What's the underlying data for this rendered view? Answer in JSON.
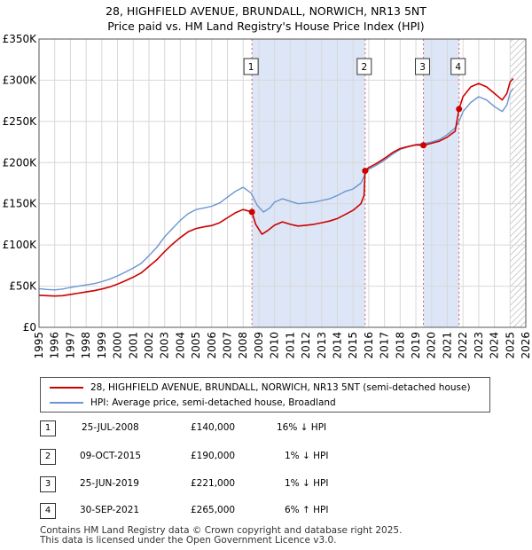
{
  "title": {
    "line1": "28, HIGHFIELD AVENUE, BRUNDALL, NORWICH, NR13 5NT",
    "line2": "Price paid vs. HM Land Registry's House Price Index (HPI)"
  },
  "colors": {
    "price_paid": "#cc0000",
    "hpi": "#6a96d1",
    "shade": "#dde6f7",
    "marker_line": "#e06060",
    "grid": "#d8d8d8"
  },
  "legend": {
    "price_label": "28, HIGHFIELD AVENUE, BRUNDALL, NORWICH, NR13 5NT (semi-detached house)",
    "hpi_label": "HPI: Average price, semi-detached house, Broadland"
  },
  "transactions": [
    {
      "num": "1",
      "date": "25-JUL-2008",
      "price": "£140,000",
      "hpi_diff": "16% ↓ HPI"
    },
    {
      "num": "2",
      "date": "09-OCT-2015",
      "price": "£190,000",
      "hpi_diff": "1% ↓ HPI"
    },
    {
      "num": "3",
      "date": "25-JUN-2019",
      "price": "£221,000",
      "hpi_diff": "1% ↓ HPI"
    },
    {
      "num": "4",
      "date": "30-SEP-2021",
      "price": "£265,000",
      "hpi_diff": "6% ↑ HPI"
    }
  ],
  "footer": {
    "line1": "Contains HM Land Registry data © Crown copyright and database right 2025.",
    "line2": "This data is licensed under the Open Government Licence v3.0."
  },
  "chart_data": {
    "type": "line",
    "title": "28, HIGHFIELD AVENUE, BRUNDALL, NORWICH, NR13 5NT",
    "xlim": [
      1995,
      2026
    ],
    "ylim": [
      0,
      350000
    ],
    "x_ticks": [
      "1995",
      "1996",
      "1997",
      "1998",
      "1999",
      "2000",
      "2001",
      "2002",
      "2003",
      "2004",
      "2005",
      "2006",
      "2007",
      "2008",
      "2009",
      "2010",
      "2011",
      "2012",
      "2013",
      "2014",
      "2015",
      "2016",
      "2017",
      "2018",
      "2019",
      "2020",
      "2021",
      "2022",
      "2023",
      "2024",
      "2025",
      "2026"
    ],
    "y_ticks": [
      {
        "value": 0,
        "label": "£0"
      },
      {
        "value": 50000,
        "label": "£50K"
      },
      {
        "value": 100000,
        "label": "£100K"
      },
      {
        "value": 150000,
        "label": "£150K"
      },
      {
        "value": 200000,
        "label": "£200K"
      },
      {
        "value": 250000,
        "label": "£250K"
      },
      {
        "value": 300000,
        "label": "£300K"
      },
      {
        "value": 350000,
        "label": "£350K"
      }
    ],
    "shaded_regions": [
      [
        2008.56,
        2015.77
      ],
      [
        2019.48,
        2021.75
      ]
    ],
    "hatched_from": 2025.0,
    "sales": [
      {
        "label": "1",
        "x": 2008.56,
        "y": 140000
      },
      {
        "label": "2",
        "x": 2015.77,
        "y": 190000
      },
      {
        "label": "3",
        "x": 2019.48,
        "y": 221000
      },
      {
        "label": "4",
        "x": 2021.75,
        "y": 265000
      }
    ],
    "series": [
      {
        "name": "HPI: Average price, semi-detached house, Broadland",
        "points": [
          [
            1995.0,
            47000
          ],
          [
            1995.5,
            46000
          ],
          [
            1996.0,
            45500
          ],
          [
            1996.5,
            46500
          ],
          [
            1997.0,
            48500
          ],
          [
            1997.5,
            50000
          ],
          [
            1998.0,
            51500
          ],
          [
            1998.5,
            53000
          ],
          [
            1999.0,
            55500
          ],
          [
            1999.5,
            58500
          ],
          [
            2000.0,
            62500
          ],
          [
            2000.5,
            67000
          ],
          [
            2001.0,
            72000
          ],
          [
            2001.5,
            77500
          ],
          [
            2002.0,
            87000
          ],
          [
            2002.5,
            97000
          ],
          [
            2003.0,
            110000
          ],
          [
            2003.5,
            120000
          ],
          [
            2004.0,
            130000
          ],
          [
            2004.5,
            138000
          ],
          [
            2005.0,
            143000
          ],
          [
            2005.5,
            145000
          ],
          [
            2006.0,
            147000
          ],
          [
            2006.5,
            151000
          ],
          [
            2007.0,
            158000
          ],
          [
            2007.5,
            165000
          ],
          [
            2008.0,
            170000
          ],
          [
            2008.5,
            163000
          ],
          [
            2008.9,
            148000
          ],
          [
            2009.3,
            140000
          ],
          [
            2009.7,
            145000
          ],
          [
            2010.0,
            152000
          ],
          [
            2010.5,
            156000
          ],
          [
            2011.0,
            153000
          ],
          [
            2011.5,
            150000
          ],
          [
            2012.0,
            151000
          ],
          [
            2012.5,
            152000
          ],
          [
            2013.0,
            154000
          ],
          [
            2013.5,
            156000
          ],
          [
            2014.0,
            160000
          ],
          [
            2014.5,
            165000
          ],
          [
            2015.0,
            168000
          ],
          [
            2015.5,
            175000
          ],
          [
            2015.77,
            186000
          ],
          [
            2016.0,
            192000
          ],
          [
            2016.5,
            197000
          ],
          [
            2017.0,
            203000
          ],
          [
            2017.5,
            210000
          ],
          [
            2018.0,
            216000
          ],
          [
            2018.5,
            219000
          ],
          [
            2019.0,
            222000
          ],
          [
            2019.5,
            223000
          ],
          [
            2020.0,
            225000
          ],
          [
            2020.5,
            228000
          ],
          [
            2021.0,
            234000
          ],
          [
            2021.5,
            242000
          ],
          [
            2021.75,
            250000
          ],
          [
            2022.0,
            262000
          ],
          [
            2022.5,
            273000
          ],
          [
            2023.0,
            280000
          ],
          [
            2023.5,
            276000
          ],
          [
            2024.0,
            268000
          ],
          [
            2024.5,
            262000
          ],
          [
            2024.8,
            270000
          ],
          [
            2025.0,
            285000
          ],
          [
            2025.2,
            290000
          ]
        ]
      },
      {
        "name": "28, HIGHFIELD AVENUE, BRUNDALL, NORWICH, NR13 5NT (semi-detached house)",
        "points": [
          [
            1995.0,
            39000
          ],
          [
            1995.5,
            38500
          ],
          [
            1996.0,
            38000
          ],
          [
            1996.5,
            38500
          ],
          [
            1997.0,
            40000
          ],
          [
            1997.5,
            41500
          ],
          [
            1998.0,
            43000
          ],
          [
            1998.5,
            44500
          ],
          [
            1999.0,
            46500
          ],
          [
            1999.5,
            49000
          ],
          [
            2000.0,
            52500
          ],
          [
            2000.5,
            56500
          ],
          [
            2001.0,
            61000
          ],
          [
            2001.5,
            66000
          ],
          [
            2002.0,
            74000
          ],
          [
            2002.5,
            82000
          ],
          [
            2003.0,
            92000
          ],
          [
            2003.5,
            101000
          ],
          [
            2004.0,
            109000
          ],
          [
            2004.5,
            116000
          ],
          [
            2005.0,
            120000
          ],
          [
            2005.5,
            122000
          ],
          [
            2006.0,
            123500
          ],
          [
            2006.5,
            127000
          ],
          [
            2007.0,
            133000
          ],
          [
            2007.5,
            139000
          ],
          [
            2008.0,
            143000
          ],
          [
            2008.56,
            140000
          ],
          [
            2008.8,
            125000
          ],
          [
            2009.2,
            113000
          ],
          [
            2009.6,
            118000
          ],
          [
            2010.0,
            124000
          ],
          [
            2010.5,
            128000
          ],
          [
            2011.0,
            125000
          ],
          [
            2011.5,
            123000
          ],
          [
            2012.0,
            124000
          ],
          [
            2012.5,
            125000
          ],
          [
            2013.0,
            127000
          ],
          [
            2013.5,
            129000
          ],
          [
            2014.0,
            132000
          ],
          [
            2014.5,
            137000
          ],
          [
            2015.0,
            142000
          ],
          [
            2015.5,
            150000
          ],
          [
            2015.7,
            160000
          ],
          [
            2015.77,
            190000
          ],
          [
            2016.0,
            194000
          ],
          [
            2016.5,
            199000
          ],
          [
            2017.0,
            205000
          ],
          [
            2017.5,
            212000
          ],
          [
            2018.0,
            217000
          ],
          [
            2018.5,
            219500
          ],
          [
            2019.0,
            221500
          ],
          [
            2019.48,
            221000
          ],
          [
            2020.0,
            223500
          ],
          [
            2020.5,
            226000
          ],
          [
            2021.0,
            231000
          ],
          [
            2021.5,
            238000
          ],
          [
            2021.75,
            265000
          ],
          [
            2022.0,
            280000
          ],
          [
            2022.5,
            292000
          ],
          [
            2023.0,
            296000
          ],
          [
            2023.5,
            292000
          ],
          [
            2024.0,
            284000
          ],
          [
            2024.5,
            276000
          ],
          [
            2024.8,
            284000
          ],
          [
            2025.0,
            298000
          ],
          [
            2025.2,
            302000
          ]
        ]
      }
    ]
  }
}
